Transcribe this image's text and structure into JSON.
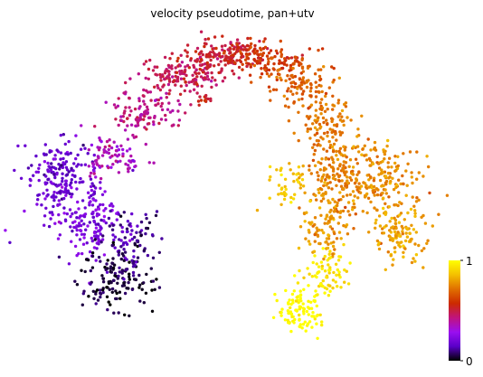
{
  "chart_data": {
    "type": "scatter",
    "title": "velocity pseudotime, pan+utv",
    "xlabel": "",
    "ylabel": "",
    "colorbar": {
      "min": 0,
      "max": 1,
      "tick_labels": [
        "0",
        "1"
      ],
      "colormap": "gnuplot",
      "colors": [
        "#000000",
        "#5a00c8",
        "#9a0ff0",
        "#c0147d",
        "#cc2a00",
        "#e07000",
        "#f4c000",
        "#ffff00"
      ]
    },
    "clusters": [
      {
        "x": 0.08,
        "y": 0.55,
        "pseudotime": 0.18,
        "n": 190,
        "sx": 0.045,
        "sy": 0.06
      },
      {
        "x": 0.15,
        "y": 0.4,
        "pseudotime": 0.22,
        "n": 160,
        "sx": 0.05,
        "sy": 0.06
      },
      {
        "x": 0.22,
        "y": 0.22,
        "pseudotime": 0.04,
        "n": 140,
        "sx": 0.04,
        "sy": 0.05
      },
      {
        "x": 0.25,
        "y": 0.35,
        "pseudotime": 0.1,
        "n": 80,
        "sx": 0.035,
        "sy": 0.05
      },
      {
        "x": 0.2,
        "y": 0.62,
        "pseudotime": 0.35,
        "n": 80,
        "sx": 0.035,
        "sy": 0.04
      },
      {
        "x": 0.28,
        "y": 0.76,
        "pseudotime": 0.42,
        "n": 110,
        "sx": 0.04,
        "sy": 0.04
      },
      {
        "x": 0.38,
        "y": 0.88,
        "pseudotime": 0.48,
        "n": 150,
        "sx": 0.045,
        "sy": 0.03
      },
      {
        "x": 0.48,
        "y": 0.95,
        "pseudotime": 0.52,
        "n": 160,
        "sx": 0.045,
        "sy": 0.025
      },
      {
        "x": 0.58,
        "y": 0.93,
        "pseudotime": 0.6,
        "n": 110,
        "sx": 0.04,
        "sy": 0.03
      },
      {
        "x": 0.66,
        "y": 0.86,
        "pseudotime": 0.68,
        "n": 110,
        "sx": 0.035,
        "sy": 0.04
      },
      {
        "x": 0.72,
        "y": 0.72,
        "pseudotime": 0.72,
        "n": 110,
        "sx": 0.035,
        "sy": 0.05
      },
      {
        "x": 0.75,
        "y": 0.55,
        "pseudotime": 0.74,
        "n": 160,
        "sx": 0.04,
        "sy": 0.06
      },
      {
        "x": 0.72,
        "y": 0.38,
        "pseudotime": 0.78,
        "n": 90,
        "sx": 0.03,
        "sy": 0.05
      },
      {
        "x": 0.63,
        "y": 0.52,
        "pseudotime": 0.86,
        "n": 50,
        "sx": 0.025,
        "sy": 0.04
      },
      {
        "x": 0.72,
        "y": 0.24,
        "pseudotime": 0.94,
        "n": 70,
        "sx": 0.03,
        "sy": 0.04
      },
      {
        "x": 0.66,
        "y": 0.12,
        "pseudotime": 1.0,
        "n": 100,
        "sx": 0.025,
        "sy": 0.04
      },
      {
        "x": 0.86,
        "y": 0.55,
        "pseudotime": 0.76,
        "n": 170,
        "sx": 0.045,
        "sy": 0.06
      },
      {
        "x": 0.9,
        "y": 0.38,
        "pseudotime": 0.8,
        "n": 120,
        "sx": 0.035,
        "sy": 0.05
      },
      {
        "x": 0.43,
        "y": 0.8,
        "pseudotime": 0.54,
        "n": 12,
        "sx": 0.008,
        "sy": 0.01
      }
    ],
    "xlim": [
      0,
      1
    ],
    "ylim": [
      0,
      1
    ],
    "grid": false
  }
}
